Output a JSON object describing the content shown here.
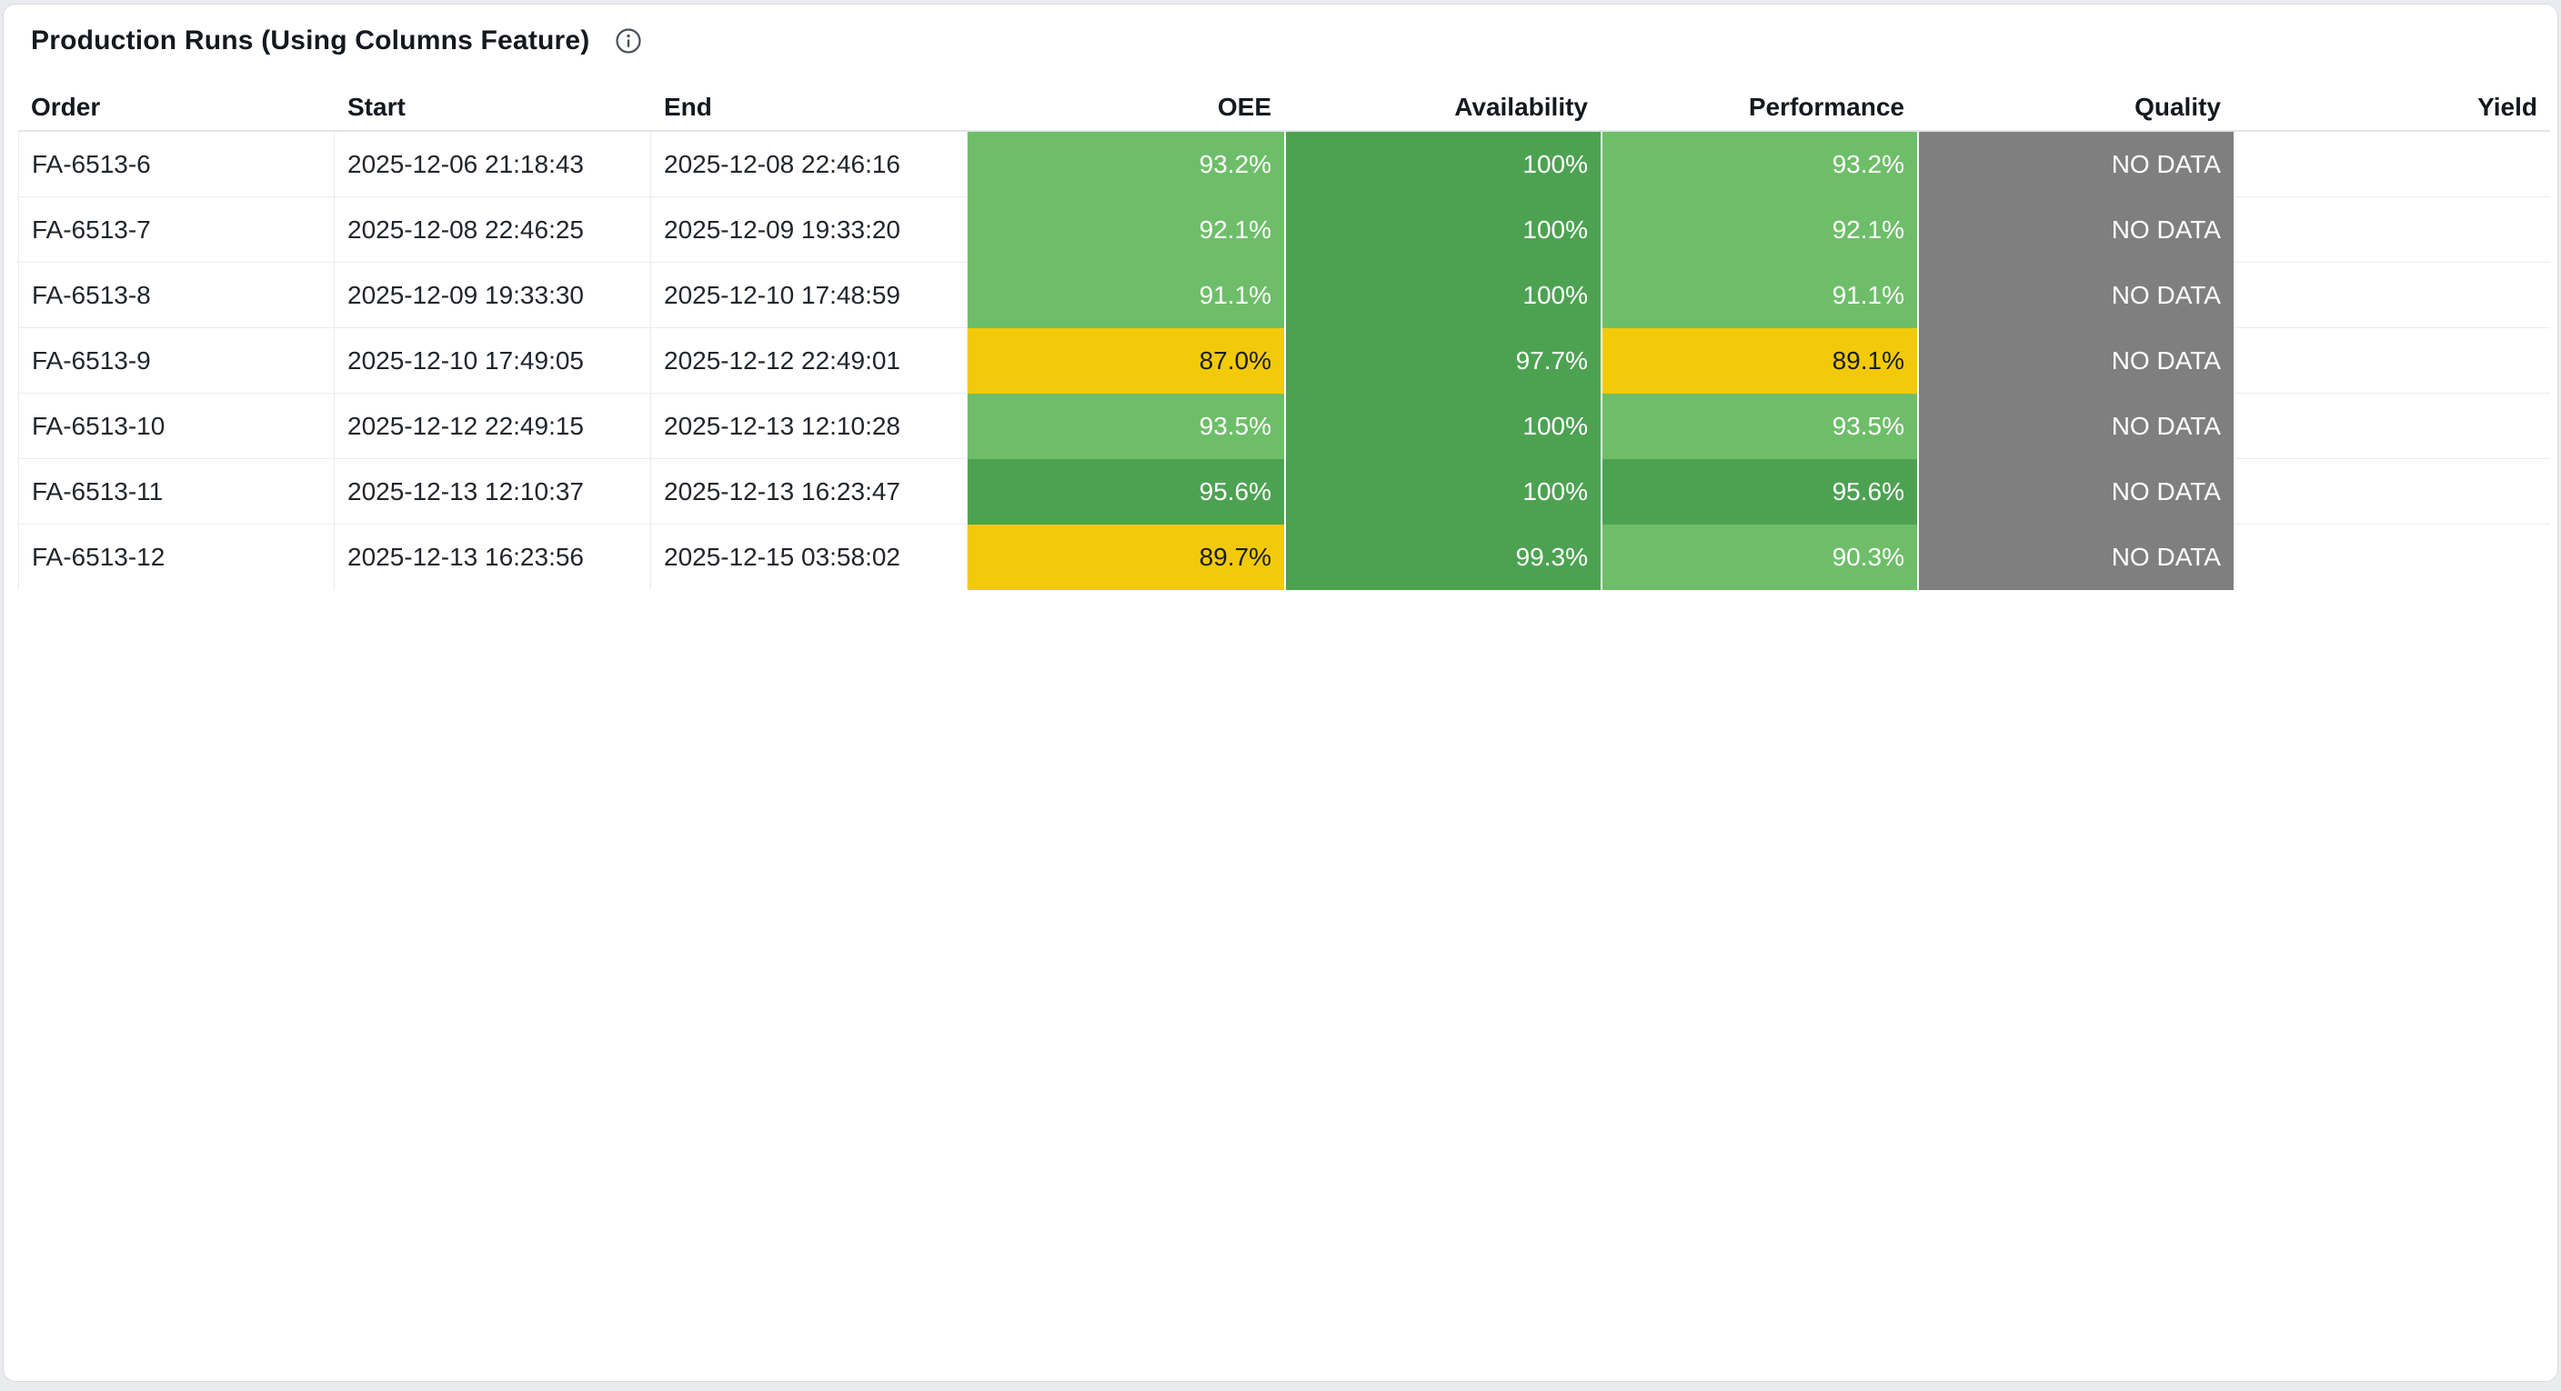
{
  "card": {
    "title": "Production Runs (Using Columns Feature)",
    "info_icon": "info-icon"
  },
  "colors": {
    "kpi_green_light": "#6ebe69",
    "kpi_green_dark": "#4da252",
    "kpi_yellow": "#f2ca0a",
    "kpi_no_data_gray": "#7f7f7f",
    "header_text": "#15191e",
    "body_text": "#22262b",
    "row_border": "#e9ecef",
    "card_background": "#ffffff",
    "page_background": "#e9ebee"
  },
  "table": {
    "columns": [
      {
        "key": "order",
        "label": "Order",
        "align": "left"
      },
      {
        "key": "start",
        "label": "Start",
        "align": "left"
      },
      {
        "key": "end",
        "label": "End",
        "align": "left"
      },
      {
        "key": "oee",
        "label": "OEE",
        "align": "right"
      },
      {
        "key": "availability",
        "label": "Availability",
        "align": "right"
      },
      {
        "key": "performance",
        "label": "Performance",
        "align": "right"
      },
      {
        "key": "quality",
        "label": "Quality",
        "align": "right"
      },
      {
        "key": "yield",
        "label": "Yield",
        "align": "right"
      }
    ],
    "rows": [
      {
        "order": "FA-6513-6",
        "start": "2025-12-06 21:18:43",
        "end": "2025-12-08 22:46:16",
        "oee": {
          "text": "93.2%",
          "tone": "green-light"
        },
        "availability": {
          "text": "100%",
          "tone": "green-dark"
        },
        "performance": {
          "text": "93.2%",
          "tone": "green-light"
        },
        "quality": {
          "text": "NO DATA",
          "tone": "gray"
        },
        "yield": ""
      },
      {
        "order": "FA-6513-7",
        "start": "2025-12-08 22:46:25",
        "end": "2025-12-09 19:33:20",
        "oee": {
          "text": "92.1%",
          "tone": "green-light"
        },
        "availability": {
          "text": "100%",
          "tone": "green-dark"
        },
        "performance": {
          "text": "92.1%",
          "tone": "green-light"
        },
        "quality": {
          "text": "NO DATA",
          "tone": "gray"
        },
        "yield": ""
      },
      {
        "order": "FA-6513-8",
        "start": "2025-12-09 19:33:30",
        "end": "2025-12-10 17:48:59",
        "oee": {
          "text": "91.1%",
          "tone": "green-light"
        },
        "availability": {
          "text": "100%",
          "tone": "green-dark"
        },
        "performance": {
          "text": "91.1%",
          "tone": "green-light"
        },
        "quality": {
          "text": "NO DATA",
          "tone": "gray"
        },
        "yield": ""
      },
      {
        "order": "FA-6513-9",
        "start": "2025-12-10 17:49:05",
        "end": "2025-12-12 22:49:01",
        "oee": {
          "text": "87.0%",
          "tone": "yellow"
        },
        "availability": {
          "text": "97.7%",
          "tone": "green-dark"
        },
        "performance": {
          "text": "89.1%",
          "tone": "yellow"
        },
        "quality": {
          "text": "NO DATA",
          "tone": "gray"
        },
        "yield": ""
      },
      {
        "order": "FA-6513-10",
        "start": "2025-12-12 22:49:15",
        "end": "2025-12-13 12:10:28",
        "oee": {
          "text": "93.5%",
          "tone": "green-light"
        },
        "availability": {
          "text": "100%",
          "tone": "green-dark"
        },
        "performance": {
          "text": "93.5%",
          "tone": "green-light"
        },
        "quality": {
          "text": "NO DATA",
          "tone": "gray"
        },
        "yield": ""
      },
      {
        "order": "FA-6513-11",
        "start": "2025-12-13 12:10:37",
        "end": "2025-12-13 16:23:47",
        "oee": {
          "text": "95.6%",
          "tone": "green-dark"
        },
        "availability": {
          "text": "100%",
          "tone": "green-dark"
        },
        "performance": {
          "text": "95.6%",
          "tone": "green-dark"
        },
        "quality": {
          "text": "NO DATA",
          "tone": "gray"
        },
        "yield": ""
      },
      {
        "order": "FA-6513-12",
        "start": "2025-12-13 16:23:56",
        "end": "2025-12-15 03:58:02",
        "oee": {
          "text": "89.7%",
          "tone": "yellow"
        },
        "availability": {
          "text": "99.3%",
          "tone": "green-dark"
        },
        "performance": {
          "text": "90.3%",
          "tone": "green-light"
        },
        "quality": {
          "text": "NO DATA",
          "tone": "gray"
        },
        "yield": ""
      }
    ]
  }
}
